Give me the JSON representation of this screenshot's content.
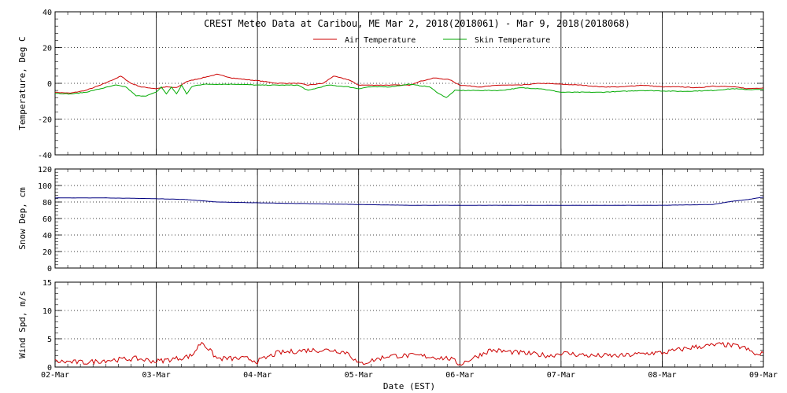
{
  "title": "CREST Meteo Data at Caribou, ME   Mar  2, 2018(2018061) - Mar  9, 2018(2018068)",
  "xlabel": "Date (EST)",
  "colors": {
    "air": "#cc0000",
    "skin": "#00aa00",
    "snow": "#000080",
    "wind": "#cc0000"
  },
  "chart_data": [
    {
      "type": "line",
      "ylabel": "Temperature, Deg C",
      "ylim": [
        -40,
        40
      ],
      "yticks": [
        "-40",
        "-20",
        "0",
        "20",
        "40"
      ],
      "xlim": [
        0,
        7
      ],
      "grid": true,
      "legend": "top-center",
      "series": [
        {
          "name": "Air Temperature",
          "x": [
            0,
            0.15,
            0.3,
            0.45,
            0.55,
            0.65,
            0.75,
            0.85,
            1.0,
            1.1,
            1.2,
            1.3,
            1.45,
            1.6,
            1.75,
            1.9,
            2.0,
            2.2,
            2.4,
            2.5,
            2.65,
            2.75,
            2.9,
            3.0,
            3.2,
            3.35,
            3.5,
            3.6,
            3.75,
            3.9,
            4.0,
            4.2,
            4.4,
            4.6,
            4.8,
            5.0,
            5.2,
            5.4,
            5.6,
            5.8,
            6.0,
            6.2,
            6.35,
            6.5,
            6.7,
            6.85,
            7.0
          ],
          "values": [
            -5,
            -5.5,
            -4,
            -1,
            1.5,
            4,
            0,
            -2,
            -3,
            -2,
            -2.5,
            1,
            3,
            5,
            3,
            2,
            1.5,
            0,
            0,
            -1,
            0,
            4,
            2,
            -1,
            -1,
            -1,
            -1,
            1,
            3,
            2,
            -1,
            -2,
            -1,
            -1,
            0,
            -0.5,
            -1,
            -2,
            -2,
            -1,
            -2,
            -2,
            -2.5,
            -1.5,
            -2,
            -3,
            -2.5
          ]
        },
        {
          "name": "Skin Temperature",
          "x": [
            0,
            0.15,
            0.3,
            0.45,
            0.6,
            0.7,
            0.8,
            0.9,
            1.0,
            1.05,
            1.1,
            1.15,
            1.2,
            1.25,
            1.3,
            1.35,
            1.4,
            1.5,
            1.6,
            1.8,
            2.0,
            2.2,
            2.4,
            2.5,
            2.7,
            2.9,
            3.0,
            3.1,
            3.3,
            3.5,
            3.7,
            3.8,
            3.87,
            3.95,
            4.2,
            4.4,
            4.6,
            4.8,
            5.0,
            5.4,
            5.8,
            6.2,
            6.5,
            6.7,
            6.85,
            7.0
          ],
          "values": [
            -5.5,
            -6,
            -5,
            -3,
            -1,
            -2,
            -7,
            -7,
            -5,
            -2,
            -6,
            -2,
            -6,
            -1,
            -6,
            -2,
            -1,
            -0.5,
            -0.5,
            -0.5,
            -1,
            -1,
            -1,
            -4,
            -1,
            -2,
            -3,
            -2,
            -2,
            -0.5,
            -2,
            -6,
            -8,
            -4,
            -4,
            -4,
            -2.5,
            -3,
            -5,
            -5,
            -4,
            -4.5,
            -4,
            -3,
            -3.5,
            -3.5
          ]
        }
      ]
    },
    {
      "type": "line",
      "ylabel": "Snow Dep, cm",
      "ylim": [
        0,
        120
      ],
      "yticks": [
        "0",
        "20",
        "40",
        "60",
        "80",
        "100",
        "120"
      ],
      "xlim": [
        0,
        7
      ],
      "grid": true,
      "series": [
        {
          "x": [
            0,
            0.5,
            1.0,
            1.3,
            1.6,
            2.0,
            2.5,
            3.0,
            3.5,
            4.0,
            4.5,
            5.0,
            5.5,
            6.0,
            6.5,
            6.7,
            6.85,
            7.0
          ],
          "values": [
            85,
            85,
            84,
            83,
            80,
            79,
            78,
            77,
            76,
            76,
            76,
            76,
            76,
            76,
            77,
            81,
            83,
            86
          ]
        }
      ]
    },
    {
      "type": "line",
      "ylabel": "Wind Spd, m/s",
      "ylim": [
        0,
        15
      ],
      "yticks": [
        "0",
        "5",
        "10",
        "15"
      ],
      "xlim": [
        0,
        7
      ],
      "xticks": [
        "02-Mar",
        "03-Mar",
        "04-Mar",
        "05-Mar",
        "06-Mar",
        "07-Mar",
        "08-Mar",
        "09-Mar"
      ],
      "grid": true,
      "series": [
        {
          "x": [
            0,
            0.3,
            0.5,
            0.8,
            1.0,
            1.2,
            1.35,
            1.45,
            1.6,
            1.9,
            2.0,
            2.2,
            2.5,
            2.75,
            2.9,
            3.0,
            3.3,
            3.6,
            3.9,
            4.0,
            4.3,
            4.6,
            4.9,
            5.0,
            5.3,
            5.6,
            5.9,
            6.0,
            6.3,
            6.6,
            6.8,
            6.95,
            7.0
          ],
          "values": [
            1,
            0.8,
            1.2,
            1.5,
            1,
            1.5,
            2,
            4.5,
            1.5,
            1.5,
            1,
            2.5,
            3,
            3,
            2.5,
            0.5,
            2,
            2,
            1.5,
            0.5,
            3,
            2.5,
            2,
            2.5,
            2,
            2,
            2.5,
            2.5,
            3.5,
            4,
            3.5,
            2,
            2.5
          ]
        }
      ]
    }
  ]
}
